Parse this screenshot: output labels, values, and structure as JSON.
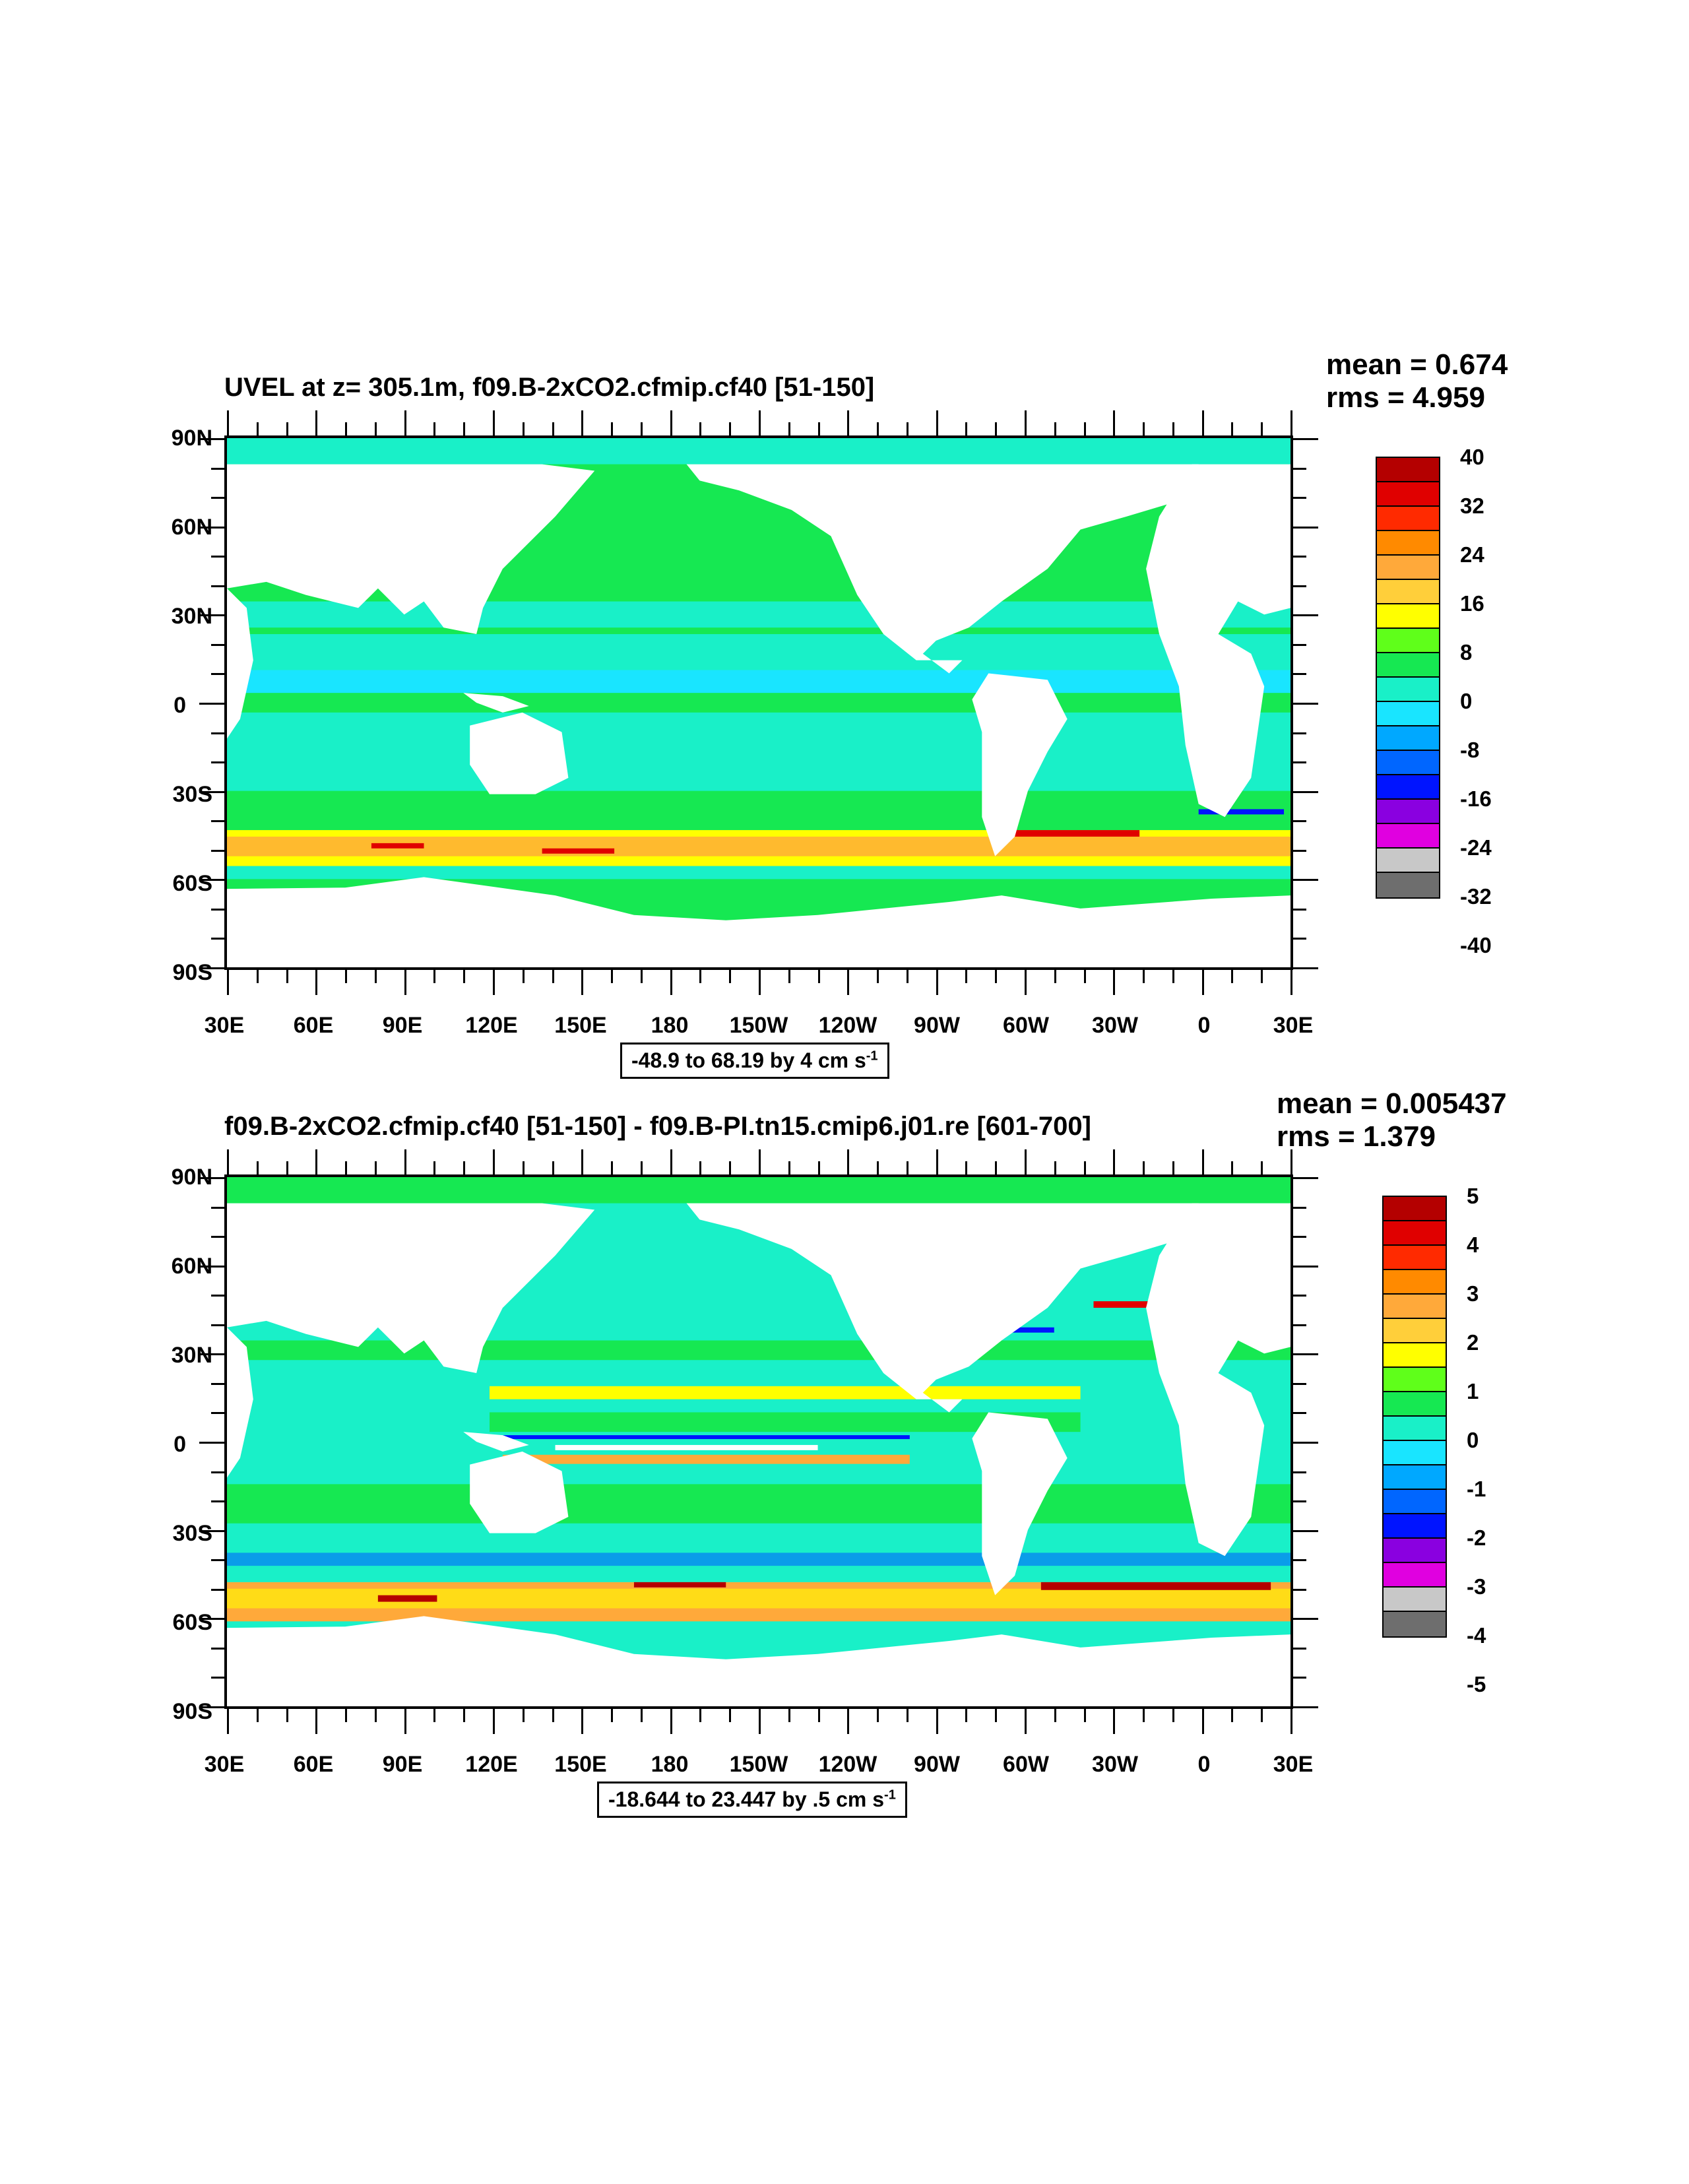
{
  "panels": [
    {
      "title": "UVEL at z= 305.1m, f09.B-2xCO2.cfmip.cf40 [51-150]",
      "mean": "mean = 0.674",
      "rms": "rms = 4.959",
      "range_text": "-48.9 to 68.19 by 4 cm s",
      "range_sup": "-1",
      "colorbar_labels": [
        "40",
        "32",
        "24",
        "16",
        "8",
        "0",
        "-8",
        "-16",
        "-24",
        "-32",
        "-40"
      ]
    },
    {
      "title": "f09.B-2xCO2.cfmip.cf40 [51-150] - f09.B-PI.tn15.cmip6.j01.re [601-700]",
      "mean": "mean = 0.005437",
      "rms": "rms = 1.379",
      "range_text": "-18.644 to 23.447 by .5 cm s",
      "range_sup": "-1",
      "colorbar_labels": [
        "5",
        "4",
        "3",
        "2",
        "1",
        "0",
        "-1",
        "-2",
        "-3",
        "-4",
        "-5"
      ]
    }
  ],
  "y_axis_labels": [
    "90N",
    "60N",
    "30N",
    "0",
    "30S",
    "60S",
    "90S"
  ],
  "x_axis_labels": [
    "30E",
    "60E",
    "90E",
    "120E",
    "150E",
    "180",
    "150W",
    "120W",
    "90W",
    "60W",
    "30W",
    "0",
    "30E"
  ],
  "colorbar_colors": [
    "#b40000",
    "#e00000",
    "#ff2a00",
    "#ff8a00",
    "#ffa93a",
    "#ffcf3a",
    "#ffff00",
    "#5fff1a",
    "#16e852",
    "#19f0c8",
    "#19e5ff",
    "#00a8ff",
    "#0066ff",
    "#0014ff",
    "#8a00e0",
    "#e000e0",
    "#c8c8c8",
    "#6e6e6e"
  ],
  "colors": {
    "ocean_base": "#16e852",
    "ocean_cyan": "#19f0c8",
    "ocean_lightblue": "#19e5ff",
    "ocean_yellow": "#ffff00",
    "ocean_orange": "#ffa93a",
    "ocean_red": "#e00000",
    "ocean_blue": "#0014ff",
    "land": "#ffffff"
  }
}
